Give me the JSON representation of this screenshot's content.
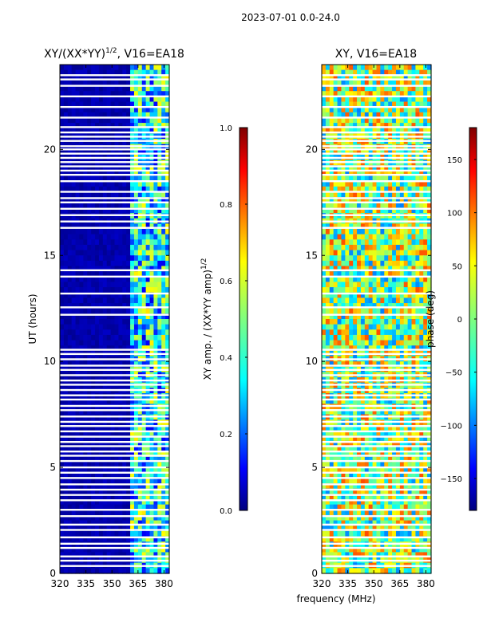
{
  "figure": {
    "suptitle": "2023-07-01 0.0-24.0",
    "xlabel_shared": "frequency (MHz)"
  },
  "colors": {
    "jet": [
      "#00007f",
      "#0000ff",
      "#007fff",
      "#00ffff",
      "#7fff7f",
      "#ffff00",
      "#ff7f00",
      "#ff0000",
      "#7f0000"
    ],
    "axis": "#000000",
    "background": "#ffffff"
  },
  "chart_data": [
    {
      "type": "heatmap",
      "title_main": "XY/(XX*YY)",
      "title_sup": "1/2",
      "title_tail": ", V16=EA18",
      "xlabel": "",
      "ylabel": "UT (hours)",
      "xlim": [
        320,
        383
      ],
      "ylim": [
        0,
        24
      ],
      "xticks": [
        320,
        335,
        350,
        365,
        380
      ],
      "yticks": [
        0,
        5,
        10,
        15,
        20
      ],
      "colorbar": {
        "label": "XY amp. / (XX*YY amp)",
        "label_sup": "1/2",
        "range": [
          0.0,
          1.0
        ],
        "ticks": [
          "0.0",
          "0.2",
          "0.4",
          "0.6",
          "0.8",
          "1.0"
        ]
      },
      "flagged_hours": [
        0.35,
        0.6,
        0.8,
        1.2,
        1.4,
        1.7,
        2.05,
        2.3,
        2.7,
        3.0,
        3.45,
        3.7,
        3.95,
        4.2,
        4.5,
        4.75,
        5.0,
        5.3,
        5.55,
        5.75,
        6.0,
        6.2,
        6.45,
        6.7,
        6.95,
        7.15,
        7.4,
        7.7,
        7.9,
        8.2,
        8.4,
        8.65,
        8.9,
        9.1,
        9.35,
        9.6,
        9.8,
        10.1,
        10.35,
        10.55,
        12.2,
        12.55,
        13.2,
        14.0,
        14.3,
        16.3,
        16.6,
        16.9,
        17.2,
        17.5,
        17.7,
        18.0,
        18.5,
        18.8,
        19.0,
        19.2,
        19.4,
        19.6,
        19.8,
        20.0,
        20.15,
        20.4,
        20.6,
        20.8,
        21.05,
        21.5,
        22.0,
        22.5,
        23.0,
        23.3,
        23.5
      ]
    },
    {
      "type": "heatmap",
      "title": "XY, V16=EA18",
      "xlabel": "frequency (MHz)",
      "ylabel": "",
      "xlim": [
        320,
        383
      ],
      "ylim": [
        0,
        24
      ],
      "xticks": [
        320,
        335,
        350,
        365,
        380
      ],
      "yticks": [
        0,
        5,
        10,
        15,
        20
      ],
      "colorbar": {
        "label": "phase (deg)",
        "range": [
          -180,
          180
        ],
        "ticks": [
          "−150",
          "−100",
          "−50",
          "0",
          "50",
          "100",
          "150"
        ]
      },
      "flagged_hours": [
        0.35,
        0.6,
        0.8,
        1.2,
        1.4,
        1.7,
        2.05,
        2.3,
        2.7,
        3.0,
        3.45,
        3.7,
        3.95,
        4.2,
        4.5,
        4.75,
        5.0,
        5.3,
        5.55,
        5.75,
        6.0,
        6.2,
        6.45,
        6.7,
        6.95,
        7.15,
        7.4,
        7.7,
        7.9,
        8.2,
        8.4,
        8.65,
        8.9,
        9.1,
        9.35,
        9.6,
        9.8,
        10.1,
        10.35,
        10.55,
        12.2,
        12.55,
        13.2,
        14.0,
        14.3,
        16.3,
        16.6,
        16.9,
        17.2,
        17.5,
        17.7,
        18.0,
        18.5,
        18.8,
        19.0,
        19.2,
        19.4,
        19.6,
        19.8,
        20.0,
        20.15,
        20.4,
        20.6,
        20.8,
        21.05,
        21.5,
        22.0,
        22.5,
        23.0,
        23.3,
        23.5
      ]
    }
  ]
}
